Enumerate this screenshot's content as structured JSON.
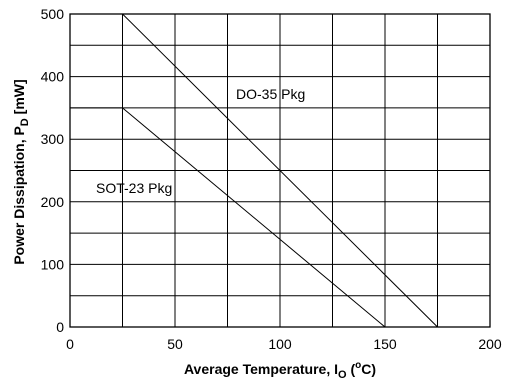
{
  "chart_data": {
    "type": "line",
    "xlabel": "Average Temperature, I",
    "xlabel_sub": "O",
    "xlabel_unit_open": " (",
    "xlabel_unit_sup": "o",
    "xlabel_unit_close": "C)",
    "ylabel": "Power Dissipation,  P",
    "ylabel_sub": "D",
    "ylabel_unit": " [mW]",
    "xlim": [
      0,
      200
    ],
    "ylim": [
      0,
      500
    ],
    "xticks": [
      0,
      50,
      100,
      150,
      200
    ],
    "yticks": [
      0,
      100,
      200,
      300,
      400,
      500
    ],
    "x_grid_step": 25,
    "y_grid_step": 50,
    "grid": true,
    "series": [
      {
        "name": "DO-35 Pkg",
        "x": [
          0,
          25,
          175
        ],
        "y": [
          500,
          500,
          0
        ]
      },
      {
        "name": "SOT-23 Pkg",
        "x": [
          0,
          25,
          150
        ],
        "y": [
          350,
          350,
          0
        ]
      }
    ]
  }
}
